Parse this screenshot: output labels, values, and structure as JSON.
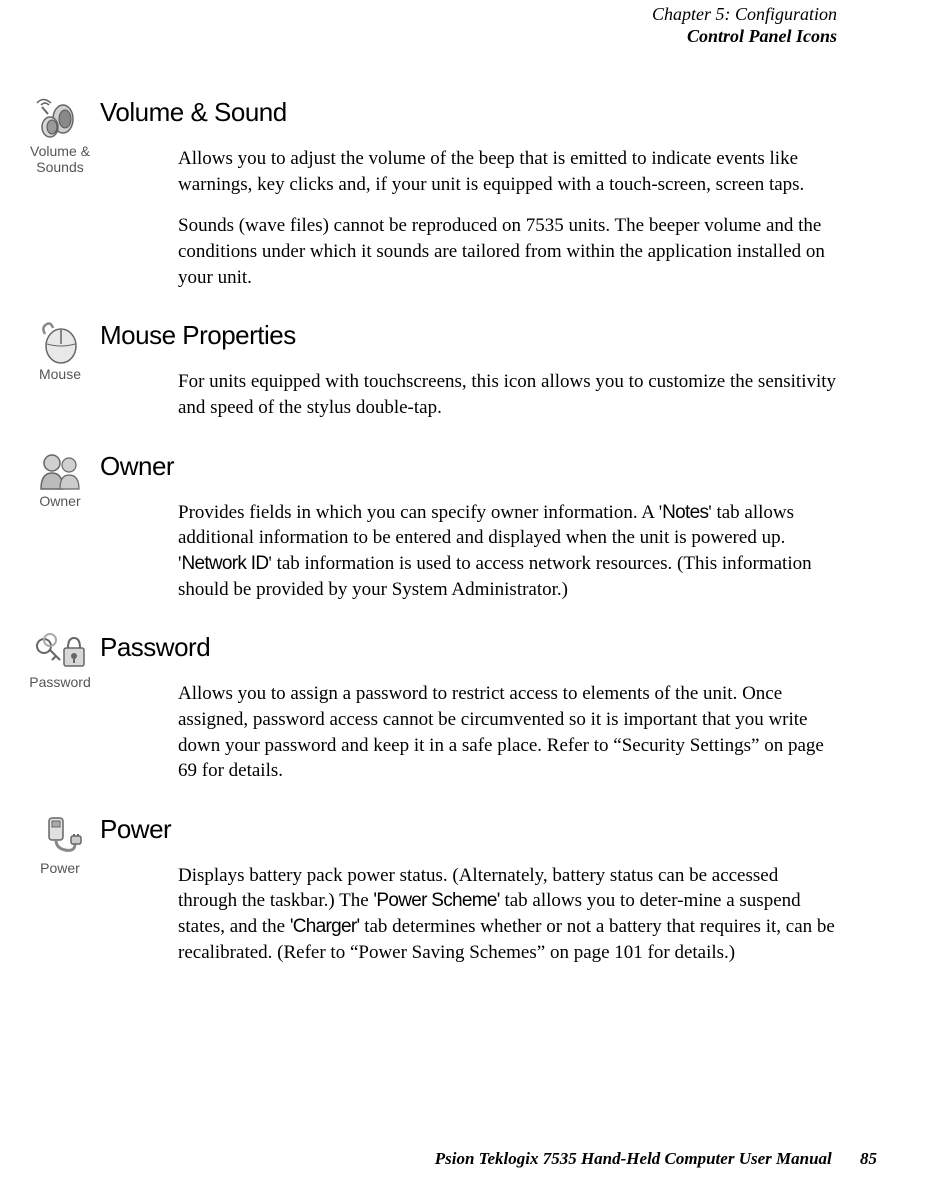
{
  "header": {
    "chapter": "Chapter 5: Configuration",
    "section": "Control Panel Icons"
  },
  "sections": [
    {
      "icon_caption": "Volume & Sounds",
      "title": "Volume & Sound",
      "paras": [
        "Allows you to adjust the volume of the beep that is emitted to indicate events like warnings, key clicks and, if your unit is equipped with a touch-screen, screen taps.",
        "Sounds (wave files) cannot be reproduced on 7535 units. The beeper volume and the conditions under which it sounds are tailored from within the application installed on your unit."
      ]
    },
    {
      "icon_caption": "Mouse",
      "title": "Mouse Properties",
      "paras": [
        "For units equipped with touchscreens, this icon allows you to customize the sensitivity and speed of the stylus double-tap."
      ]
    },
    {
      "icon_caption": "Owner",
      "title": "Owner",
      "paras": [
        "Provides fields in which you can specify owner information. A '<span class=\"cond-bold\">Notes</span>' tab allows additional information to be entered and displayed when the unit is powered up. '<span class=\"cond-bold\">Network ID</span>' tab information is used to access network resources. (This information should be provided by your System Administrator.)"
      ]
    },
    {
      "icon_caption": "Password",
      "title": "Password",
      "paras": [
        "Allows you to assign a password to restrict access to elements of the unit. Once assigned, password access cannot be circumvented so it is important that you write down your password and keep it in a safe place. Refer to “Security Settings” on page 69 for details."
      ]
    },
    {
      "icon_caption": "Power",
      "title": "Power",
      "paras": [
        "Displays battery pack power status. (Alternately, battery status can be accessed through the taskbar.) The <span class=\"cond-bold\">'Power Scheme'</span> tab allows you to deter-mine a suspend states, and the <span class=\"cond-bold\">'Charger'</span> tab determines whether or not a battery that requires it, can be recalibrated. (Refer to “Power Saving Schemes” on page 101 for details.)"
      ]
    }
  ],
  "footer": {
    "title": "Psion Teklogix 7535 Hand-Held Computer User Manual",
    "page": "85"
  },
  "icons": {
    "color_fill": "#c8c8c8",
    "color_stroke": "#666666"
  }
}
